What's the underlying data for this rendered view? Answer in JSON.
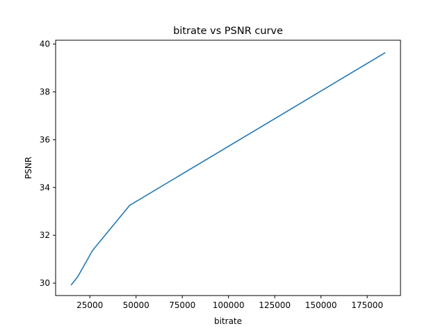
{
  "chart_data": {
    "type": "line",
    "title": "bitrate vs PSNR curve",
    "xlabel": "bitrate",
    "ylabel": "PSNR",
    "xlim": [
      6500,
      193000
    ],
    "ylim": [
      29.48,
      40.16
    ],
    "xticks": [
      25000,
      50000,
      75000,
      100000,
      125000,
      150000,
      175000
    ],
    "yticks": [
      30,
      32,
      34,
      36,
      38,
      40
    ],
    "grid": false,
    "series": [
      {
        "color": "#1f77b4",
        "x": [
          15000,
          18500,
          26500,
          46500,
          184500
        ],
        "y": [
          29.93,
          30.27,
          31.37,
          33.25,
          39.63
        ]
      }
    ]
  }
}
